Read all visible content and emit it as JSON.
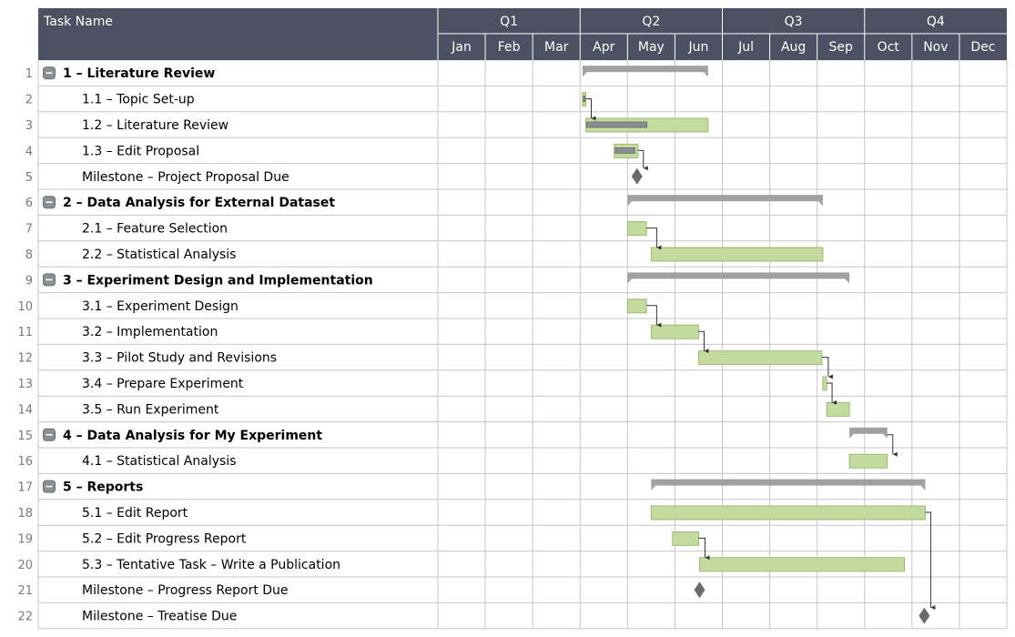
{
  "chart_data": {
    "type": "gantt",
    "header": {
      "task_column": "Task Name"
    },
    "quarters": [
      "Q1",
      "Q2",
      "Q3",
      "Q4"
    ],
    "months": [
      "Jan",
      "Feb",
      "Mar",
      "Apr",
      "May",
      "Jun",
      "Jul",
      "Aug",
      "Sep",
      "Oct",
      "Nov",
      "Dec"
    ],
    "colors": {
      "header_bg": "#4b5160",
      "summary_bar": "#a1a1a1",
      "task_bar": "#c4dba0",
      "task_bar_border": "#9dbb72",
      "progress_bar": "#8b8e90",
      "milestone": "#6b6b6b",
      "grid": "#c6c6c6"
    },
    "tasks": [
      {
        "num": "1",
        "name": "1 – Literature Review",
        "kind": "summary",
        "start": 3.05,
        "end": 5.7
      },
      {
        "num": "2",
        "name": "1.1 – Topic Set-up",
        "kind": "task",
        "start": 3.05,
        "end": 3.12,
        "progress": 1.0
      },
      {
        "num": "3",
        "name": "1.2 – Literature Review",
        "kind": "task",
        "start": 3.12,
        "end": 5.7,
        "progress": 0.5
      },
      {
        "num": "4",
        "name": "1.3 – Edit Proposal",
        "kind": "task",
        "start": 3.72,
        "end": 4.22,
        "progress": 0.9
      },
      {
        "num": "5",
        "name": "Milestone – Project Proposal Due",
        "kind": "milestone",
        "start": 4.2,
        "end": 4.2
      },
      {
        "num": "6",
        "name": "2 – Data Analysis for External Dataset",
        "kind": "summary",
        "start": 4.0,
        "end": 8.12
      },
      {
        "num": "7",
        "name": "2.1 – Feature Selection",
        "kind": "task",
        "start": 4.0,
        "end": 4.4
      },
      {
        "num": "8",
        "name": "2.2 – Statistical Analysis",
        "kind": "task",
        "start": 4.5,
        "end": 8.12
      },
      {
        "num": "9",
        "name": "3 – Experiment Design and Implementation",
        "kind": "summary",
        "start": 4.0,
        "end": 8.68
      },
      {
        "num": "10",
        "name": "3.1 – Experiment Design",
        "kind": "task",
        "start": 4.0,
        "end": 4.4
      },
      {
        "num": "11",
        "name": "3.2 – Implementation",
        "kind": "task",
        "start": 4.5,
        "end": 5.5
      },
      {
        "num": "12",
        "name": "3.3 – Pilot Study and Revisions",
        "kind": "task",
        "start": 5.5,
        "end": 8.1
      },
      {
        "num": "13",
        "name": "3.4 – Prepare Experiment",
        "kind": "task",
        "start": 8.12,
        "end": 8.2
      },
      {
        "num": "14",
        "name": "3.5 – Run Experiment",
        "kind": "task",
        "start": 8.2,
        "end": 8.68
      },
      {
        "num": "15",
        "name": "4 – Data Analysis for My Experiment",
        "kind": "summary",
        "start": 8.68,
        "end": 9.48
      },
      {
        "num": "16",
        "name": "4.1 – Statistical Analysis",
        "kind": "task",
        "start": 8.68,
        "end": 9.48
      },
      {
        "num": "17",
        "name": "5 – Reports",
        "kind": "summary",
        "start": 4.5,
        "end": 10.28
      },
      {
        "num": "18",
        "name": "5.1 – Edit Report",
        "kind": "task",
        "start": 4.5,
        "end": 10.28
      },
      {
        "num": "19",
        "name": "5.2 – Edit Progress Report",
        "kind": "task",
        "start": 4.95,
        "end": 5.5
      },
      {
        "num": "20",
        "name": "5.3 – Tentative Task – Write a Publication",
        "kind": "task",
        "start": 5.52,
        "end": 9.84
      },
      {
        "num": "21",
        "name": "Milestone – Progress Report Due",
        "kind": "milestone",
        "start": 5.52,
        "end": 5.52
      },
      {
        "num": "22",
        "name": "Milestone – Treatise Due",
        "kind": "milestone",
        "start": 10.26,
        "end": 10.26
      }
    ],
    "dependencies": [
      {
        "from": 1,
        "to": 2
      },
      {
        "from": 3,
        "to": 4
      },
      {
        "from": 6,
        "to": 7
      },
      {
        "from": 9,
        "to": 10
      },
      {
        "from": 10,
        "to": 11
      },
      {
        "from": 11,
        "to": 12
      },
      {
        "from": 12,
        "to": 13
      },
      {
        "from": 14,
        "to": 15
      },
      {
        "from": 18,
        "to": 19
      },
      {
        "from": 17,
        "to": 21
      }
    ]
  }
}
